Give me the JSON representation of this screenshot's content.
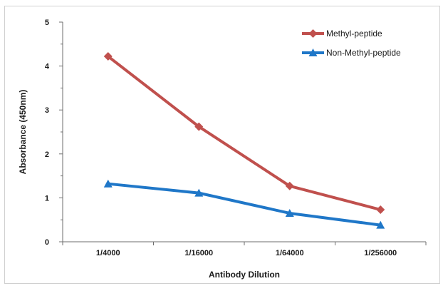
{
  "chart_data": {
    "type": "line",
    "title": "",
    "xlabel": "Antibody Dilution",
    "ylabel": "Absorbance (450nm)",
    "categories": [
      "1/4000",
      "1/16000",
      "1/64000",
      "1/256000"
    ],
    "ylim": [
      0,
      5
    ],
    "yticks": [
      0,
      1,
      2,
      3,
      4,
      5
    ],
    "grid": false,
    "legend": "top-right",
    "series": [
      {
        "name": "Methyl-peptide",
        "values": [
          4.22,
          2.62,
          1.27,
          0.73
        ],
        "color": "#c0504d",
        "marker": "diamond"
      },
      {
        "name": "Non-Methyl-peptide",
        "values": [
          1.32,
          1.11,
          0.65,
          0.38
        ],
        "color": "#1f77c8",
        "marker": "triangle"
      }
    ]
  }
}
